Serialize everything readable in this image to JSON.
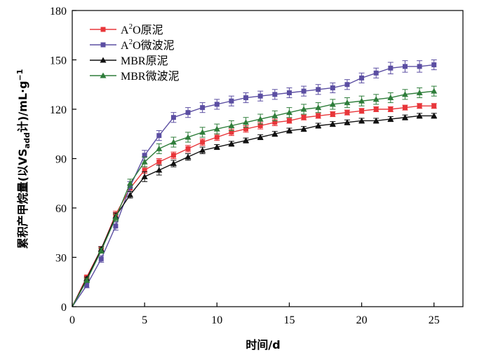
{
  "chart_data": {
    "type": "line",
    "xlabel": "时间/d",
    "ylabel_main": "累积产甲烷量(以VS",
    "ylabel_sub": "add",
    "ylabel_tail": "计)/mL·g",
    "ylabel_sup": "−1",
    "xlim": [
      0,
      27
    ],
    "ylim": [
      0,
      180
    ],
    "xticks": [
      0,
      5,
      10,
      15,
      20,
      25
    ],
    "yticks": [
      0,
      30,
      60,
      90,
      120,
      150,
      180
    ],
    "grid": false,
    "legend_position": "top-left",
    "x": [
      0,
      1,
      2,
      3,
      4,
      5,
      6,
      7,
      8,
      9,
      10,
      11,
      12,
      13,
      14,
      15,
      16,
      17,
      18,
      19,
      20,
      21,
      22,
      23,
      24,
      25
    ],
    "series": [
      {
        "name_base": "A",
        "name_sup": "2",
        "name_tail": "O原泥",
        "color": "#e8363a",
        "marker": "square",
        "values": [
          0,
          18,
          35,
          56,
          72,
          83,
          88,
          92,
          96,
          100,
          103,
          106,
          108,
          110,
          112,
          113,
          115,
          116,
          117,
          118,
          119,
          120,
          120,
          121,
          122,
          122
        ],
        "errors": [
          0,
          1,
          1.5,
          2,
          2,
          2,
          2,
          2,
          2,
          2,
          2,
          2,
          2,
          2,
          2,
          1.5,
          1.5,
          1.5,
          1.5,
          1.5,
          1.5,
          1.5,
          1.5,
          1.5,
          1.5,
          1.5
        ]
      },
      {
        "name_base": "A",
        "name_sup": "2",
        "name_tail": "O微波泥",
        "color": "#5b4ea2",
        "marker": "square",
        "values": [
          0,
          13,
          29,
          49,
          73,
          92,
          104,
          115,
          118,
          121,
          123,
          125,
          127,
          128,
          129,
          130,
          131,
          132,
          133,
          135,
          139,
          142,
          145,
          146,
          146,
          147
        ],
        "errors": [
          0,
          1.5,
          2,
          2.5,
          3,
          3,
          3,
          3,
          3,
          3,
          3,
          3,
          3,
          3,
          3,
          3,
          3,
          3,
          3,
          3,
          3,
          3,
          3.5,
          3.5,
          3.5,
          3
        ]
      },
      {
        "name_base": "MBR原泥",
        "name_sup": "",
        "name_tail": "",
        "color": "#111111",
        "marker": "triangle",
        "values": [
          0,
          17,
          35,
          55,
          68,
          79,
          83,
          87,
          91,
          95,
          97,
          99,
          101,
          103,
          105,
          107,
          108,
          110,
          111,
          112,
          113,
          113,
          114,
          115,
          116,
          116
        ],
        "errors": [
          0,
          1,
          1.5,
          2,
          2,
          3,
          3,
          2,
          2,
          2,
          1.5,
          1.5,
          1.5,
          1.5,
          1.5,
          1.5,
          1.5,
          1.5,
          1.5,
          1.5,
          1.5,
          1.5,
          1.5,
          1.5,
          1.5,
          1.5
        ]
      },
      {
        "name_base": "MBR微波泥",
        "name_sup": "",
        "name_tail": "",
        "color": "#2e7d3a",
        "marker": "triangle",
        "values": [
          0,
          16,
          34,
          54,
          75,
          88,
          96,
          100,
          103,
          106,
          108,
          110,
          112,
          114,
          116,
          118,
          120,
          121,
          123,
          124,
          125,
          126,
          127,
          129,
          130,
          131
        ],
        "errors": [
          0,
          1,
          1.5,
          2,
          2.5,
          3,
          3,
          3,
          3,
          3,
          3,
          3,
          3,
          3,
          3,
          3,
          3,
          3,
          3,
          3,
          3,
          3,
          3,
          3,
          3,
          3
        ]
      }
    ]
  }
}
